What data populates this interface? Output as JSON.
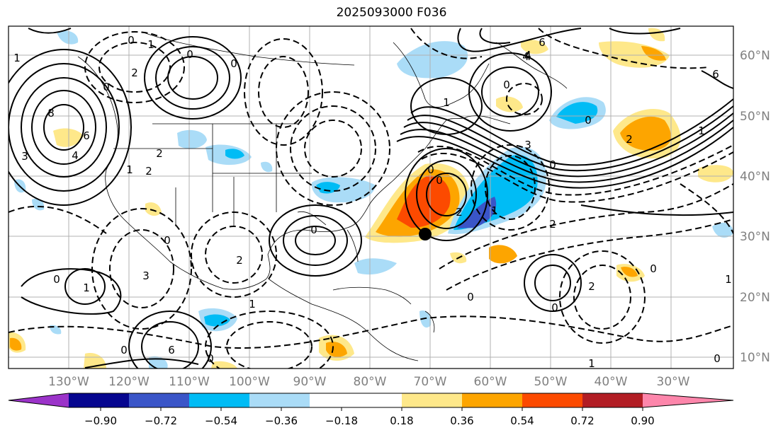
{
  "title": "2025093000 F036",
  "lon_labels": [
    "130°W",
    "120°W",
    "110°W",
    "100°W",
    "90°W",
    "80°W",
    "70°W",
    "60°W",
    "50°W",
    "40°W",
    "30°W"
  ],
  "lat_labels": [
    "60°N",
    "50°N",
    "40°N",
    "30°N",
    "20°N",
    "10°N"
  ],
  "colorbar": {
    "ticks": [
      "−0.90",
      "−0.72",
      "−0.54",
      "−0.36",
      "−0.18",
      "0.18",
      "0.36",
      "0.54",
      "0.72",
      "0.90"
    ],
    "colors": [
      "#9b33c9",
      "#06068f",
      "#3a55c8",
      "#00bcf5",
      "#aadcf7",
      "#ffffff",
      "#fee88a",
      "#fda500",
      "#fc4a00",
      "#b21d24",
      "#fd86ab"
    ]
  },
  "contour_labels": [
    "0",
    "1",
    "2",
    "0",
    "8",
    "6",
    "3",
    "4",
    "0",
    "2",
    "3",
    "4",
    "6",
    "0",
    "2",
    "1",
    "0",
    "1",
    "0",
    "2",
    "0",
    "1",
    "0",
    "2",
    "0",
    "1",
    "1",
    "3",
    "2",
    "0",
    "0",
    "0",
    "4",
    "6",
    "0",
    "0",
    "2",
    "1",
    "0",
    "0",
    "0",
    "2",
    "1",
    "4",
    "0",
    "6",
    "1",
    "1"
  ],
  "marker": "storm-center",
  "colors": {
    "grid": "#b0b0b0",
    "tick_label": "#808080"
  }
}
